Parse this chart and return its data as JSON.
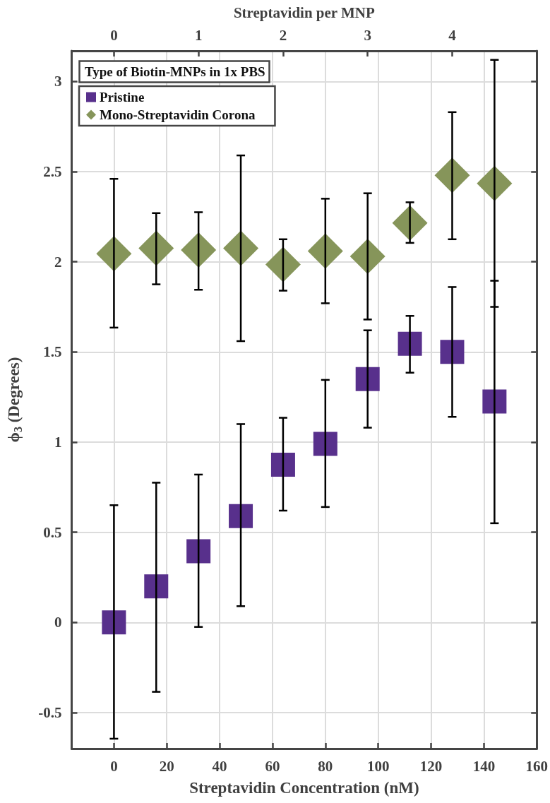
{
  "chart_data": {
    "type": "scatter",
    "xlabel": "Streptavidin Concentration (nM)",
    "ylabel": "ϕ$_{3}$ (Degrees)",
    "x2label": "Streptavidin per MNP",
    "legend_title": "Type of Biotin-MNPs in 1x PBS",
    "x": [
      0,
      16,
      32,
      48,
      64,
      80,
      96,
      112,
      128,
      144
    ],
    "series": [
      {
        "name": "Pristine",
        "color": "#58308c",
        "marker": "square",
        "values": [
          0.0,
          0.2,
          0.395,
          0.59,
          0.875,
          0.99,
          1.35,
          1.545,
          1.5,
          1.225
        ],
        "errors": [
          [
            -0.645,
            0.65
          ],
          [
            -0.385,
            0.775
          ],
          [
            -0.025,
            0.82
          ],
          [
            0.09,
            1.1
          ],
          [
            0.62,
            1.135
          ],
          [
            0.64,
            1.345
          ],
          [
            1.08,
            1.62
          ],
          [
            1.385,
            1.7
          ],
          [
            1.14,
            1.86
          ],
          [
            0.55,
            1.895
          ]
        ]
      },
      {
        "name": "Mono-Streptavidin Corona",
        "color": "#86955a",
        "marker": "diamond",
        "values": [
          2.045,
          2.075,
          2.065,
          2.075,
          1.985,
          2.06,
          2.03,
          2.215,
          2.48,
          2.435
        ],
        "errors": [
          [
            1.635,
            2.46
          ],
          [
            1.875,
            2.27
          ],
          [
            1.845,
            2.275
          ],
          [
            1.56,
            2.59
          ],
          [
            1.84,
            2.125
          ],
          [
            1.77,
            2.35
          ],
          [
            1.68,
            2.38
          ],
          [
            2.105,
            2.33
          ],
          [
            2.125,
            2.83
          ],
          [
            1.75,
            3.12
          ]
        ]
      }
    ],
    "xlim": [
      -16,
      160
    ],
    "xticks": [
      0,
      20,
      40,
      60,
      80,
      100,
      120,
      140,
      160
    ],
    "x2lim": [
      -0.5,
      5
    ],
    "x2ticks": [
      0,
      1,
      2,
      3,
      4
    ],
    "ylim": [
      -0.7,
      3.17
    ],
    "yticks": [
      -0.5,
      0,
      0.5,
      1,
      1.5,
      2,
      2.5,
      3
    ],
    "grid": true,
    "legend": "top left"
  }
}
